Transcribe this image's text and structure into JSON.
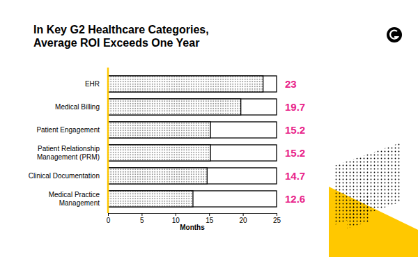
{
  "chart_data": {
    "type": "bar",
    "orientation": "horizontal",
    "title": "In Key G2 Healthcare Categories, Average ROI Exceeds One Year",
    "x_label": "Months",
    "categories": [
      "EHR",
      "Medical Billing",
      "Patient Engagement",
      "Patient Relationship Management (PRM)",
      "Clinical Documentation",
      "Medical Practice Management"
    ],
    "values": [
      23,
      19.7,
      15.2,
      15.2,
      14.7,
      12.6
    ],
    "color": "#000000",
    "xlim": [
      0,
      25
    ],
    "xticks": [
      0,
      5,
      10,
      15,
      20,
      25
    ],
    "data_labels": true,
    "grid": false
  }
}
